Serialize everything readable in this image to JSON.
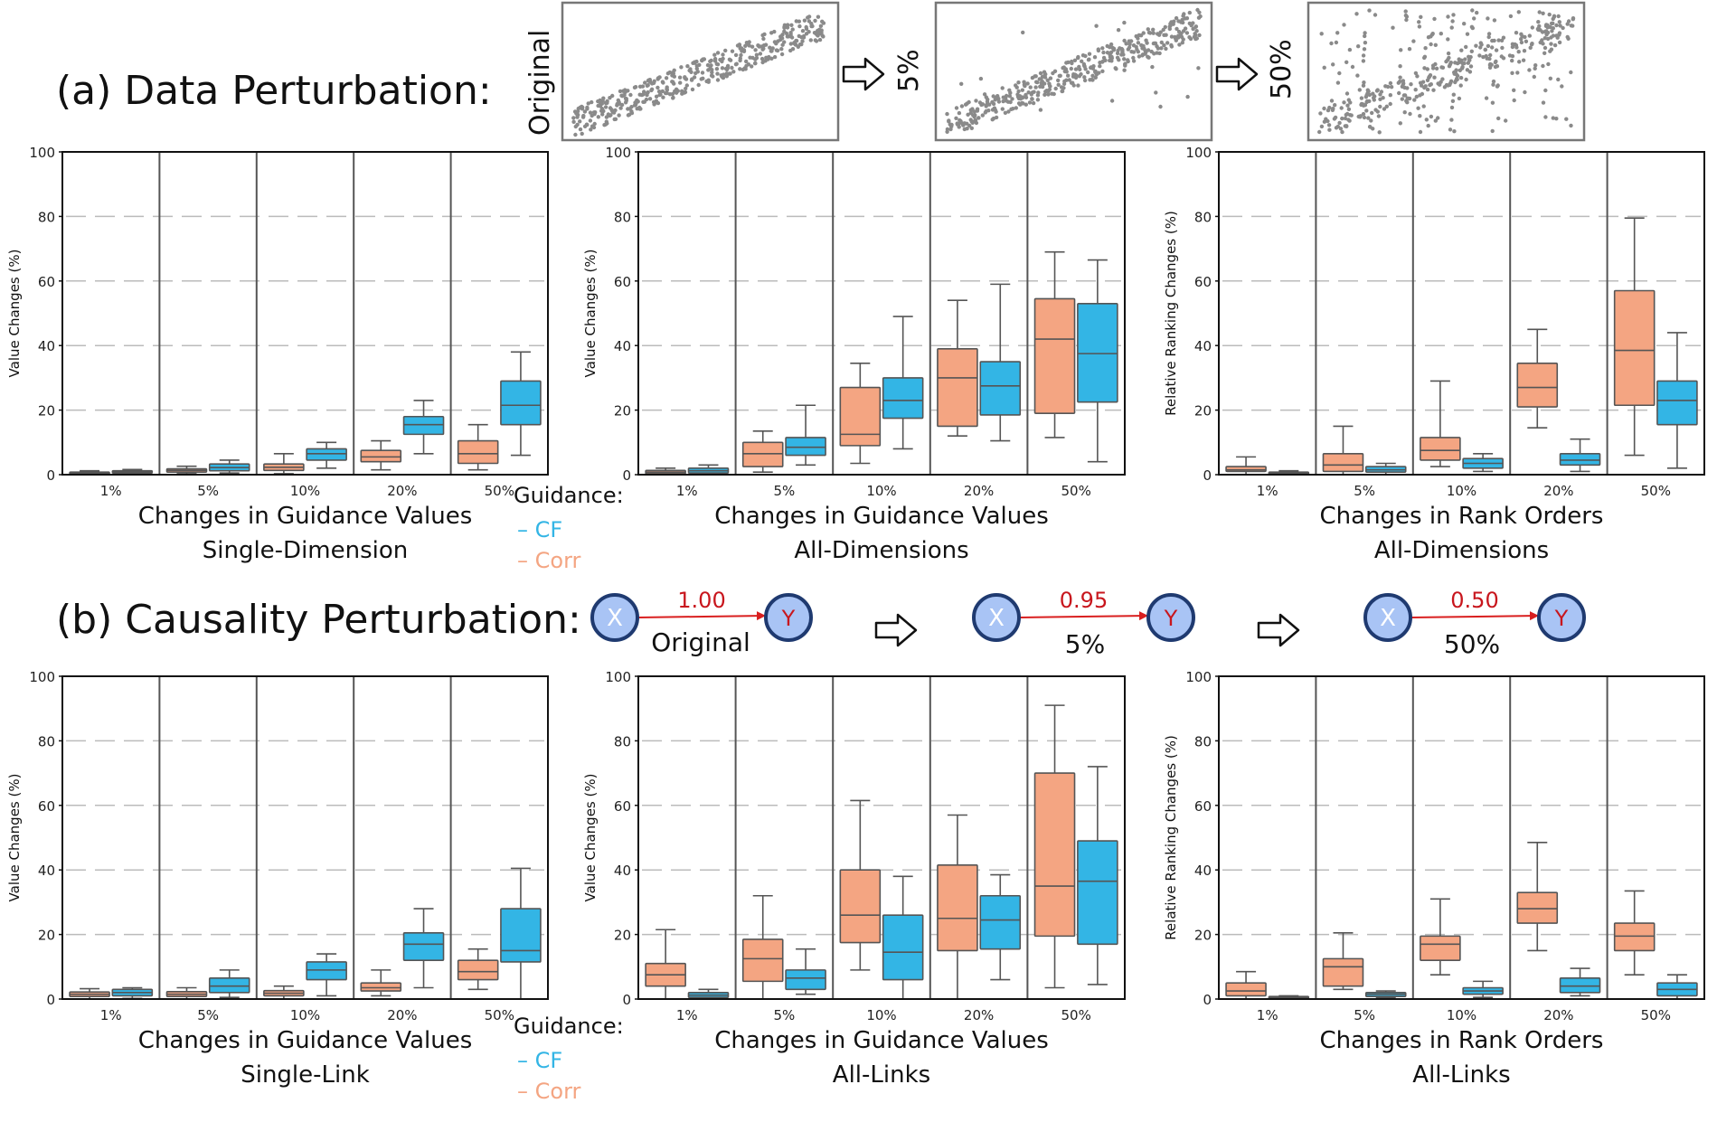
{
  "sections": [
    {
      "label": "(a) Data Perturbation:",
      "scatter_labels": [
        "Original",
        "5%",
        "50%"
      ],
      "charts": [
        {
          "type": "box",
          "ylabel": "Value Changes (%)",
          "caption": [
            "Changes in Guidance Values",
            "Single-Dimension"
          ],
          "categories": [
            "1%",
            "5%",
            "10%",
            "20%",
            "50%"
          ],
          "ylim": [
            0,
            100
          ],
          "yticks": [
            0,
            20,
            40,
            60,
            80,
            100
          ],
          "series": [
            {
              "name": "Corr",
              "color": "#F4A582",
              "boxes": [
                [
                  0,
                  0.2,
                  0.5,
                  0.8,
                  1.2
                ],
                [
                  0.3,
                  0.8,
                  1.3,
                  1.8,
                  2.6
                ],
                [
                  0.3,
                  1.3,
                  2.3,
                  3.3,
                  6.5
                ],
                [
                  1.5,
                  4,
                  5.5,
                  7.5,
                  10.5
                ],
                [
                  1.5,
                  3.5,
                  6.5,
                  10.5,
                  15.5
                ]
              ]
            },
            {
              "name": "CF",
              "color": "#33B5E5",
              "boxes": [
                [
                  0.2,
                  0.5,
                  0.9,
                  1.2,
                  1.6
                ],
                [
                  0.5,
                  1.2,
                  2.2,
                  3.3,
                  4.5
                ],
                [
                  2,
                  4.5,
                  6.5,
                  8,
                  10
                ],
                [
                  6.5,
                  12.5,
                  15.5,
                  18,
                  23
                ],
                [
                  6,
                  15.5,
                  21.5,
                  29,
                  38
                ]
              ]
            }
          ]
        },
        {
          "type": "box",
          "ylabel": "Value Changes (%)",
          "caption": [
            "Changes in Guidance Values",
            "All-Dimensions"
          ],
          "categories": [
            "1%",
            "5%",
            "10%",
            "20%",
            "50%"
          ],
          "ylim": [
            0,
            100
          ],
          "yticks": [
            0,
            20,
            40,
            60,
            80,
            100
          ],
          "series": [
            {
              "name": "Corr",
              "color": "#F4A582",
              "boxes": [
                [
                  0,
                  0.3,
                  0.8,
                  1.3,
                  2
                ],
                [
                  0.8,
                  2.5,
                  6.5,
                  10,
                  13.5
                ],
                [
                  3.5,
                  9,
                  12.5,
                  27,
                  34.5
                ],
                [
                  12,
                  15,
                  30,
                  39,
                  54
                ],
                [
                  11.5,
                  19,
                  42,
                  54.5,
                  69
                ]
              ]
            },
            {
              "name": "CF",
              "color": "#33B5E5",
              "boxes": [
                [
                  0,
                  0.5,
                  1.2,
                  2,
                  3
                ],
                [
                  3,
                  6,
                  8.5,
                  11.5,
                  21.5
                ],
                [
                  8,
                  17.5,
                  23,
                  30,
                  49
                ],
                [
                  10.5,
                  18.5,
                  27.5,
                  35,
                  59
                ],
                [
                  4,
                  22.5,
                  37.5,
                  53,
                  66.5
                ]
              ]
            }
          ]
        },
        {
          "type": "box",
          "ylabel": "Relative Ranking Changes (%)",
          "caption": [
            "Changes in Rank Orders",
            "All-Dimensions"
          ],
          "categories": [
            "1%",
            "5%",
            "10%",
            "20%",
            "50%"
          ],
          "ylim": [
            0,
            100
          ],
          "yticks": [
            0,
            20,
            40,
            60,
            80,
            100
          ],
          "series": [
            {
              "name": "Corr",
              "color": "#F4A582",
              "boxes": [
                [
                  0,
                  1,
                  1.5,
                  2.5,
                  5.5
                ],
                [
                  0,
                  1,
                  3,
                  6.5,
                  15
                ],
                [
                  2.5,
                  4.5,
                  7.5,
                  11.5,
                  29
                ],
                [
                  14.5,
                  21,
                  27,
                  34.5,
                  45
                ],
                [
                  6,
                  21.5,
                  38.5,
                  57,
                  79.5
                ]
              ]
            },
            {
              "name": "CF",
              "color": "#33B5E5",
              "boxes": [
                [
                  0,
                  0.2,
                  0.5,
                  0.8,
                  1.2
                ],
                [
                  0,
                  0.8,
                  1.5,
                  2.5,
                  3.5
                ],
                [
                  1,
                  2,
                  3.5,
                  5,
                  6.5
                ],
                [
                  1,
                  3,
                  4.5,
                  6.5,
                  11
                ],
                [
                  2,
                  15.5,
                  23,
                  29,
                  44
                ]
              ]
            }
          ]
        }
      ]
    },
    {
      "label": "(b) Causality Perturbation:",
      "links": [
        {
          "weight": "1.00",
          "caption": "Original",
          "from": "X",
          "to": "Y"
        },
        {
          "weight": "0.95",
          "caption": "5%",
          "from": "X",
          "to": "Y"
        },
        {
          "weight": "0.50",
          "caption": "50%",
          "from": "X",
          "to": "Y"
        }
      ],
      "charts": [
        {
          "type": "box",
          "ylabel": "Value Changes (%)",
          "caption": [
            "Changes in Guidance Values",
            "Single-Link"
          ],
          "categories": [
            "1%",
            "5%",
            "10%",
            "20%",
            "50%"
          ],
          "ylim": [
            0,
            100
          ],
          "yticks": [
            0,
            20,
            40,
            60,
            80,
            100
          ],
          "series": [
            {
              "name": "Corr",
              "color": "#F4A582",
              "boxes": [
                [
                  0,
                  0.8,
                  1.5,
                  2.2,
                  3.2
                ],
                [
                  0,
                  0.8,
                  1.5,
                  2.3,
                  3.5
                ],
                [
                  0,
                  1,
                  1.8,
                  2.6,
                  4
                ],
                [
                  1,
                  2.5,
                  3.5,
                  5,
                  9
                ],
                [
                  3,
                  6,
                  8.5,
                  12,
                  15.5
                ]
              ]
            },
            {
              "name": "CF",
              "color": "#33B5E5",
              "boxes": [
                [
                  0.2,
                  1,
                  2,
                  3,
                  3.5
                ],
                [
                  0.5,
                  2,
                  4,
                  6.5,
                  9
                ],
                [
                  1,
                  6,
                  9,
                  11.5,
                  14
                ],
                [
                  3.5,
                  12,
                  17,
                  20.5,
                  28
                ],
                [
                  0,
                  11.5,
                  15,
                  28,
                  40.5
                ]
              ]
            }
          ]
        },
        {
          "type": "box",
          "ylabel": "Value Changes (%)",
          "caption": [
            "Changes in Guidance Values",
            "All-Links"
          ],
          "categories": [
            "1%",
            "5%",
            "10%",
            "20%",
            "50%"
          ],
          "ylim": [
            0,
            100
          ],
          "yticks": [
            0,
            20,
            40,
            60,
            80,
            100
          ],
          "series": [
            {
              "name": "Corr",
              "color": "#F4A582",
              "boxes": [
                [
                  0,
                  4,
                  7.5,
                  11,
                  21.5
                ],
                [
                  0,
                  5.5,
                  12.5,
                  18.5,
                  32
                ],
                [
                  9,
                  17.5,
                  26,
                  40,
                  61.5
                ],
                [
                  0,
                  15,
                  25,
                  41.5,
                  57
                ],
                [
                  3.5,
                  19.5,
                  35,
                  70,
                  91
                ]
              ]
            },
            {
              "name": "CF",
              "color": "#33B5E5",
              "boxes": [
                [
                  0,
                  0.5,
                  1.2,
                  2,
                  3
                ],
                [
                  1.5,
                  3,
                  6.5,
                  9,
                  15.5
                ],
                [
                  0,
                  6,
                  14.5,
                  26,
                  38
                ],
                [
                  6,
                  15.5,
                  24.5,
                  32,
                  38.5
                ],
                [
                  4.5,
                  17,
                  36.5,
                  49,
                  72
                ]
              ]
            }
          ]
        },
        {
          "type": "box",
          "ylabel": "Relative Ranking Changes (%)",
          "caption": [
            "Changes in Rank Orders",
            "All-Links"
          ],
          "categories": [
            "1%",
            "5%",
            "10%",
            "20%",
            "50%"
          ],
          "ylim": [
            0,
            100
          ],
          "yticks": [
            0,
            20,
            40,
            60,
            80,
            100
          ],
          "series": [
            {
              "name": "Corr",
              "color": "#F4A582",
              "boxes": [
                [
                  0,
                  1,
                  2.5,
                  5,
                  8.5
                ],
                [
                  3,
                  4,
                  10,
                  12.5,
                  20.5
                ],
                [
                  7.5,
                  12,
                  17,
                  19.5,
                  31
                ],
                [
                  15,
                  23.5,
                  28,
                  33,
                  48.5
                ],
                [
                  7.5,
                  15,
                  19.5,
                  23.5,
                  33.5
                ]
              ]
            },
            {
              "name": "CF",
              "color": "#33B5E5",
              "boxes": [
                [
                  0,
                  0.3,
                  0.5,
                  0.8,
                  1
                ],
                [
                  0.5,
                  0.8,
                  1.5,
                  2,
                  2.5
                ],
                [
                  0.5,
                  1.5,
                  2.5,
                  3.5,
                  5.5
                ],
                [
                  1,
                  2,
                  4,
                  6.5,
                  9.5
                ],
                [
                  0,
                  1,
                  3,
                  5,
                  7.5
                ]
              ]
            }
          ]
        }
      ]
    }
  ],
  "legend": {
    "title": "Guidance:",
    "items": [
      {
        "label": "– CF",
        "color": "#33B5E5"
      },
      {
        "label": "– Corr",
        "color": "#F4A582"
      }
    ]
  },
  "colors": {
    "corr": "#F4A582",
    "cf": "#33B5E5",
    "node_fill": "#A9C4F5",
    "node_stroke": "#1F3A70",
    "link": "#D91F1F",
    "weight_text": "#C8161D",
    "node_y_text": "#C8161D"
  }
}
